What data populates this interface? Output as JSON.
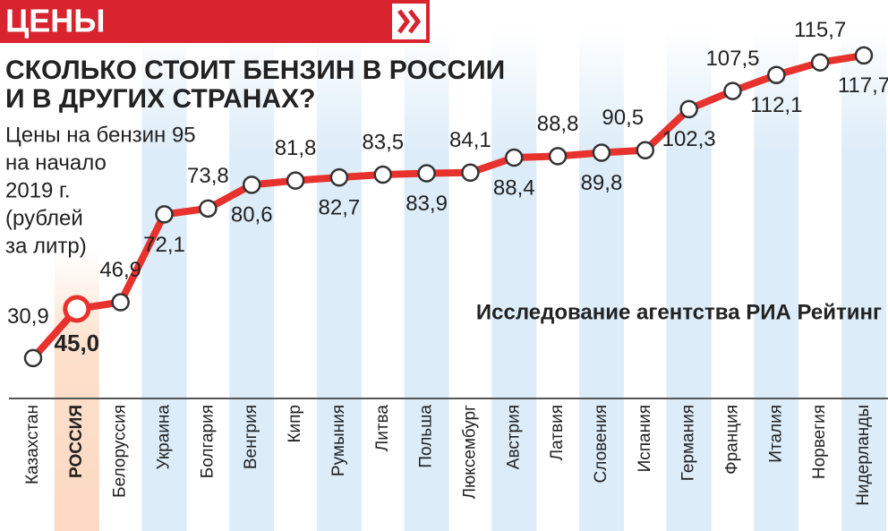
{
  "header": "ЦЕНЫ",
  "chart_data": {
    "type": "line",
    "title": [
      "СКОЛЬКО СТОИТ БЕНЗИН В РОССИИ",
      "И В ДРУГИХ СТРАНАХ?"
    ],
    "subtitle": [
      "Цены на бензин 95",
      "на начало",
      "2019 г.",
      "(рублей",
      "за литр)"
    ],
    "source": "Исследование агентства РИА Рейтинг",
    "categories": [
      "Казахстан",
      "РОССИЯ",
      "Белоруссия",
      "Украина",
      "Болгария",
      "Венгрия",
      "Кипр",
      "Румыния",
      "Литва",
      "Польша",
      "Люксембург",
      "Австрия",
      "Латвия",
      "Словения",
      "Испания",
      "Германия",
      "Франция",
      "Италия",
      "Норвегия",
      "Нидерланды"
    ],
    "values": [
      30.9,
      45.0,
      46.9,
      72.1,
      73.8,
      80.6,
      81.8,
      82.7,
      83.5,
      83.9,
      84.1,
      88.4,
      88.8,
      89.8,
      90.5,
      102.3,
      107.5,
      112.1,
      115.7,
      117.7
    ],
    "value_labels": [
      "30,9",
      "45,0",
      "46,9",
      "72,1",
      "73,8",
      "80,6",
      "81,8",
      "82,7",
      "83,5",
      "83,9",
      "84,1",
      "88,4",
      "88,8",
      "89,8",
      "90,5",
      "102,3",
      "107,5",
      "112,1",
      "115,7",
      "117,7"
    ],
    "color": "#e8322d",
    "ylim": [
      19.3,
      133.6
    ]
  }
}
